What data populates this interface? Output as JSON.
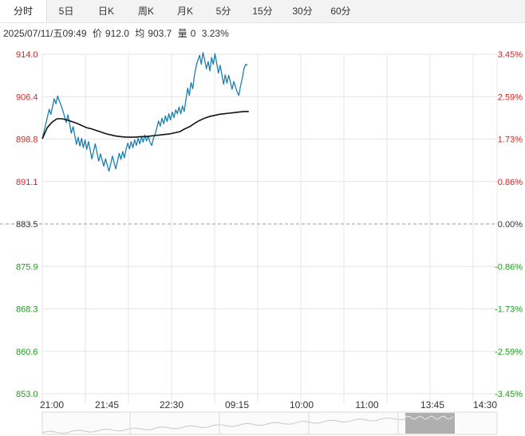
{
  "tabs": [
    {
      "label": "分时",
      "active": true
    },
    {
      "label": "5日"
    },
    {
      "label": "日K"
    },
    {
      "label": "周K"
    },
    {
      "label": "月K"
    },
    {
      "label": "5分"
    },
    {
      "label": "15分"
    },
    {
      "label": "30分"
    },
    {
      "label": "60分"
    }
  ],
  "info": {
    "datetime": "2025/07/11/五09:49",
    "price_label": "价",
    "price": "912.0",
    "avg_label": "均",
    "avg": "903.7",
    "vol_label": "量",
    "vol": "0",
    "pct": "3.23%"
  },
  "colors": {
    "price_line": "#1a7fb0",
    "avg_line": "#111111",
    "up": "#e02020",
    "down": "#1aa01a",
    "neutral": "#333333",
    "grid": "#e4e4e4"
  },
  "chart_data": {
    "type": "line",
    "ylim": [
      853.0,
      914.0
    ],
    "base": 883.5,
    "price_ticks": [
      "914.0",
      "906.4",
      "898.8",
      "891.1",
      "883.5",
      "875.9",
      "868.3",
      "860.6",
      "853.0"
    ],
    "pct_ticks": [
      "3.45%",
      "2.59%",
      "1.73%",
      "0.86%",
      "0.00%",
      "-0.86%",
      "-1.73%",
      "-2.59%",
      "-3.45%"
    ],
    "x_labels": [
      "21:00",
      "21:45",
      "22:30",
      "09:15",
      "10:00",
      "11:00",
      "13:45",
      "14:30"
    ],
    "slots_total": 570,
    "series": [
      {
        "values": [
          898.8,
          900.1,
          901.4,
          902.7,
          904.1,
          903.2,
          904.6,
          906.0,
          905.1,
          906.5,
          905.6,
          904.8,
          903.9,
          902.8,
          901.7,
          903.1,
          901.5,
          899.8,
          901.0,
          899.4,
          897.8,
          899.1,
          897.5,
          898.9,
          897.2,
          898.6,
          896.9,
          898.3,
          896.8,
          895.2,
          896.6,
          897.9,
          896.3,
          894.8,
          896.1,
          895.0,
          893.9,
          895.2,
          894.1,
          893.0,
          894.3,
          895.7,
          894.5,
          893.4,
          894.8,
          896.2,
          895.1,
          896.5,
          895.4,
          896.9,
          898.0,
          897.0,
          898.3,
          897.2,
          898.6,
          897.6,
          898.9,
          897.9,
          899.2,
          898.2,
          899.5,
          898.4,
          899.3,
          898.2,
          897.6,
          898.9,
          899.6,
          900.8,
          902.0,
          901.1,
          902.5,
          901.5,
          902.9,
          901.9,
          903.3,
          902.2,
          903.6,
          902.6,
          904.0,
          903.3,
          904.5,
          903.3,
          904.7,
          903.7,
          905.8,
          907.9,
          906.6,
          908.9,
          907.8,
          910.2,
          911.9,
          912.9,
          913.8,
          912.2,
          914.3,
          912.9,
          911.4,
          912.7,
          911.0,
          913.4,
          912.2,
          914.1,
          912.4,
          910.6,
          912.0,
          910.4,
          908.6,
          910.3,
          908.8,
          910.2,
          909.0,
          907.7,
          909.1,
          908.1,
          907.2,
          906.6,
          908.4,
          909.7,
          911.5,
          912.2,
          912.0
        ],
        "start_slot": 0,
        "step": 2.143
      },
      {
        "values": [
          898.8,
          900.8,
          901.8,
          902.4,
          902.4,
          902.2,
          901.9,
          901.6,
          901.2,
          900.8,
          900.6,
          900.3,
          900.0,
          899.7,
          899.5,
          899.3,
          899.2,
          899.1,
          899.1,
          899.1,
          899.2,
          899.2,
          899.3,
          899.4,
          899.5,
          899.6,
          899.7,
          899.9,
          900.1,
          900.6,
          901.0,
          901.6,
          902.1,
          902.5,
          902.8,
          903.0,
          903.2,
          903.3,
          903.4,
          903.5,
          903.6,
          903.7,
          903.7
        ],
        "start_slot": 0,
        "step": 6.163
      }
    ]
  }
}
